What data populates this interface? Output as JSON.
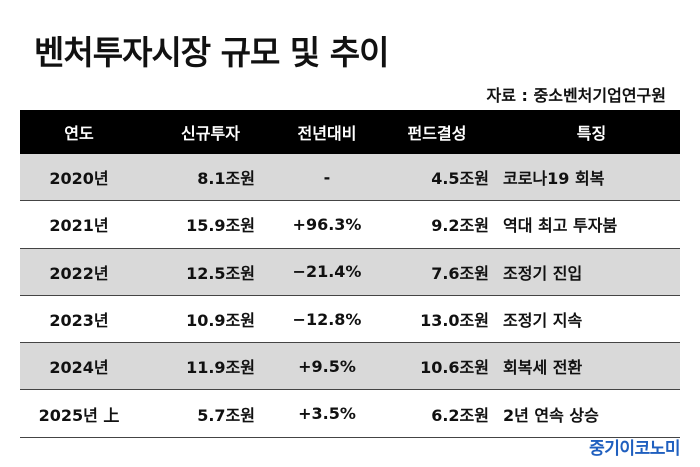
{
  "title": "벤처투자시장 규모 및 추이",
  "source": "자료 : 중소벤처기업연구원",
  "table": {
    "headers": [
      "연도",
      "신규투자",
      "전년대비",
      "펀드결성",
      "특징"
    ],
    "rows": [
      {
        "year": "2020년",
        "new_investment": "8.1조원",
        "yoy": "-",
        "fund": "4.5조원",
        "feature": "코로나19 회복"
      },
      {
        "year": "2021년",
        "new_investment": "15.9조원",
        "yoy": "+96.3%",
        "fund": "9.2조원",
        "feature": "역대 최고 투자붐"
      },
      {
        "year": "2022년",
        "new_investment": "12.5조원",
        "yoy": "−21.4%",
        "fund": "7.6조원",
        "feature": "조정기 진입"
      },
      {
        "year": "2023년",
        "new_investment": "10.9조원",
        "yoy": "−12.8%",
        "fund": "13.0조원",
        "feature": "조정기 지속"
      },
      {
        "year": "2024년",
        "new_investment": "11.9조원",
        "yoy": "+9.5%",
        "fund": "10.6조원",
        "feature": "회복세 전환"
      },
      {
        "year": "2025년 上",
        "new_investment": "5.7조원",
        "yoy": "+3.5%",
        "fund": "6.2조원",
        "feature": "2년 연속 상승"
      }
    ]
  },
  "logo": "중기이코노미",
  "colors": {
    "header_bg": "#000000",
    "shade_row": "#d9d9d9",
    "logo": "#1f5fbf"
  }
}
